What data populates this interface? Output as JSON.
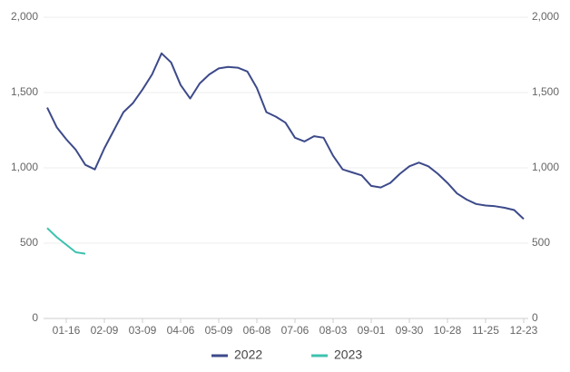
{
  "chart_data": {
    "type": "line",
    "categories": [
      null,
      null,
      "01-16",
      null,
      null,
      null,
      "02-09",
      null,
      null,
      null,
      "03-09",
      null,
      null,
      null,
      "04-06",
      null,
      null,
      null,
      "05-09",
      null,
      null,
      null,
      "06-08",
      null,
      null,
      null,
      "07-06",
      null,
      null,
      null,
      "08-03",
      null,
      null,
      null,
      "09-01",
      null,
      null,
      null,
      "09-30",
      null,
      null,
      null,
      "10-28",
      null,
      null,
      null,
      "11-25",
      null,
      null,
      null,
      "12-23"
    ],
    "series": [
      {
        "name": "2022",
        "color": "#3d4a8a",
        "values": [
          1400,
          1270,
          1190,
          1120,
          1020,
          990,
          1130,
          1250,
          1370,
          1430,
          1520,
          1620,
          1760,
          1700,
          1550,
          1460,
          1560,
          1620,
          1660,
          1670,
          1665,
          1640,
          1530,
          1370,
          1340,
          1300,
          1200,
          1175,
          1210,
          1200,
          1080,
          990,
          970,
          950,
          880,
          870,
          900,
          960,
          1010,
          1035,
          1010,
          960,
          900,
          830,
          790,
          760,
          750,
          745,
          735,
          720,
          660
        ]
      },
      {
        "name": "2023",
        "color": "#3fc1b0",
        "values": [
          600,
          540,
          490,
          440,
          430,
          null,
          null,
          null,
          null,
          null,
          null,
          null,
          null,
          null,
          null,
          null,
          null,
          null,
          null,
          null,
          null,
          null,
          null,
          null,
          null,
          null,
          null,
          null,
          null,
          null,
          null,
          null,
          null,
          null,
          null,
          null,
          null,
          null,
          null,
          null,
          null,
          null,
          null,
          null,
          null,
          null,
          null,
          null,
          null,
          null,
          null
        ]
      }
    ],
    "ylim": [
      0,
      2000
    ],
    "yticks": [
      0,
      500,
      {
        "value": 1000,
        "label": "1,000"
      },
      {
        "value": 1500,
        "label": "1,500"
      },
      {
        "value": 2000,
        "label": "2,000"
      }
    ],
    "y2lim": [
      0,
      2000
    ],
    "y2ticks": [
      0,
      500,
      {
        "value": 1000,
        "label": "1,000"
      },
      {
        "value": 1500,
        "label": "1,500"
      },
      {
        "value": 2000,
        "label": "2,000"
      }
    ],
    "grid": true,
    "legend": "bottom"
  }
}
